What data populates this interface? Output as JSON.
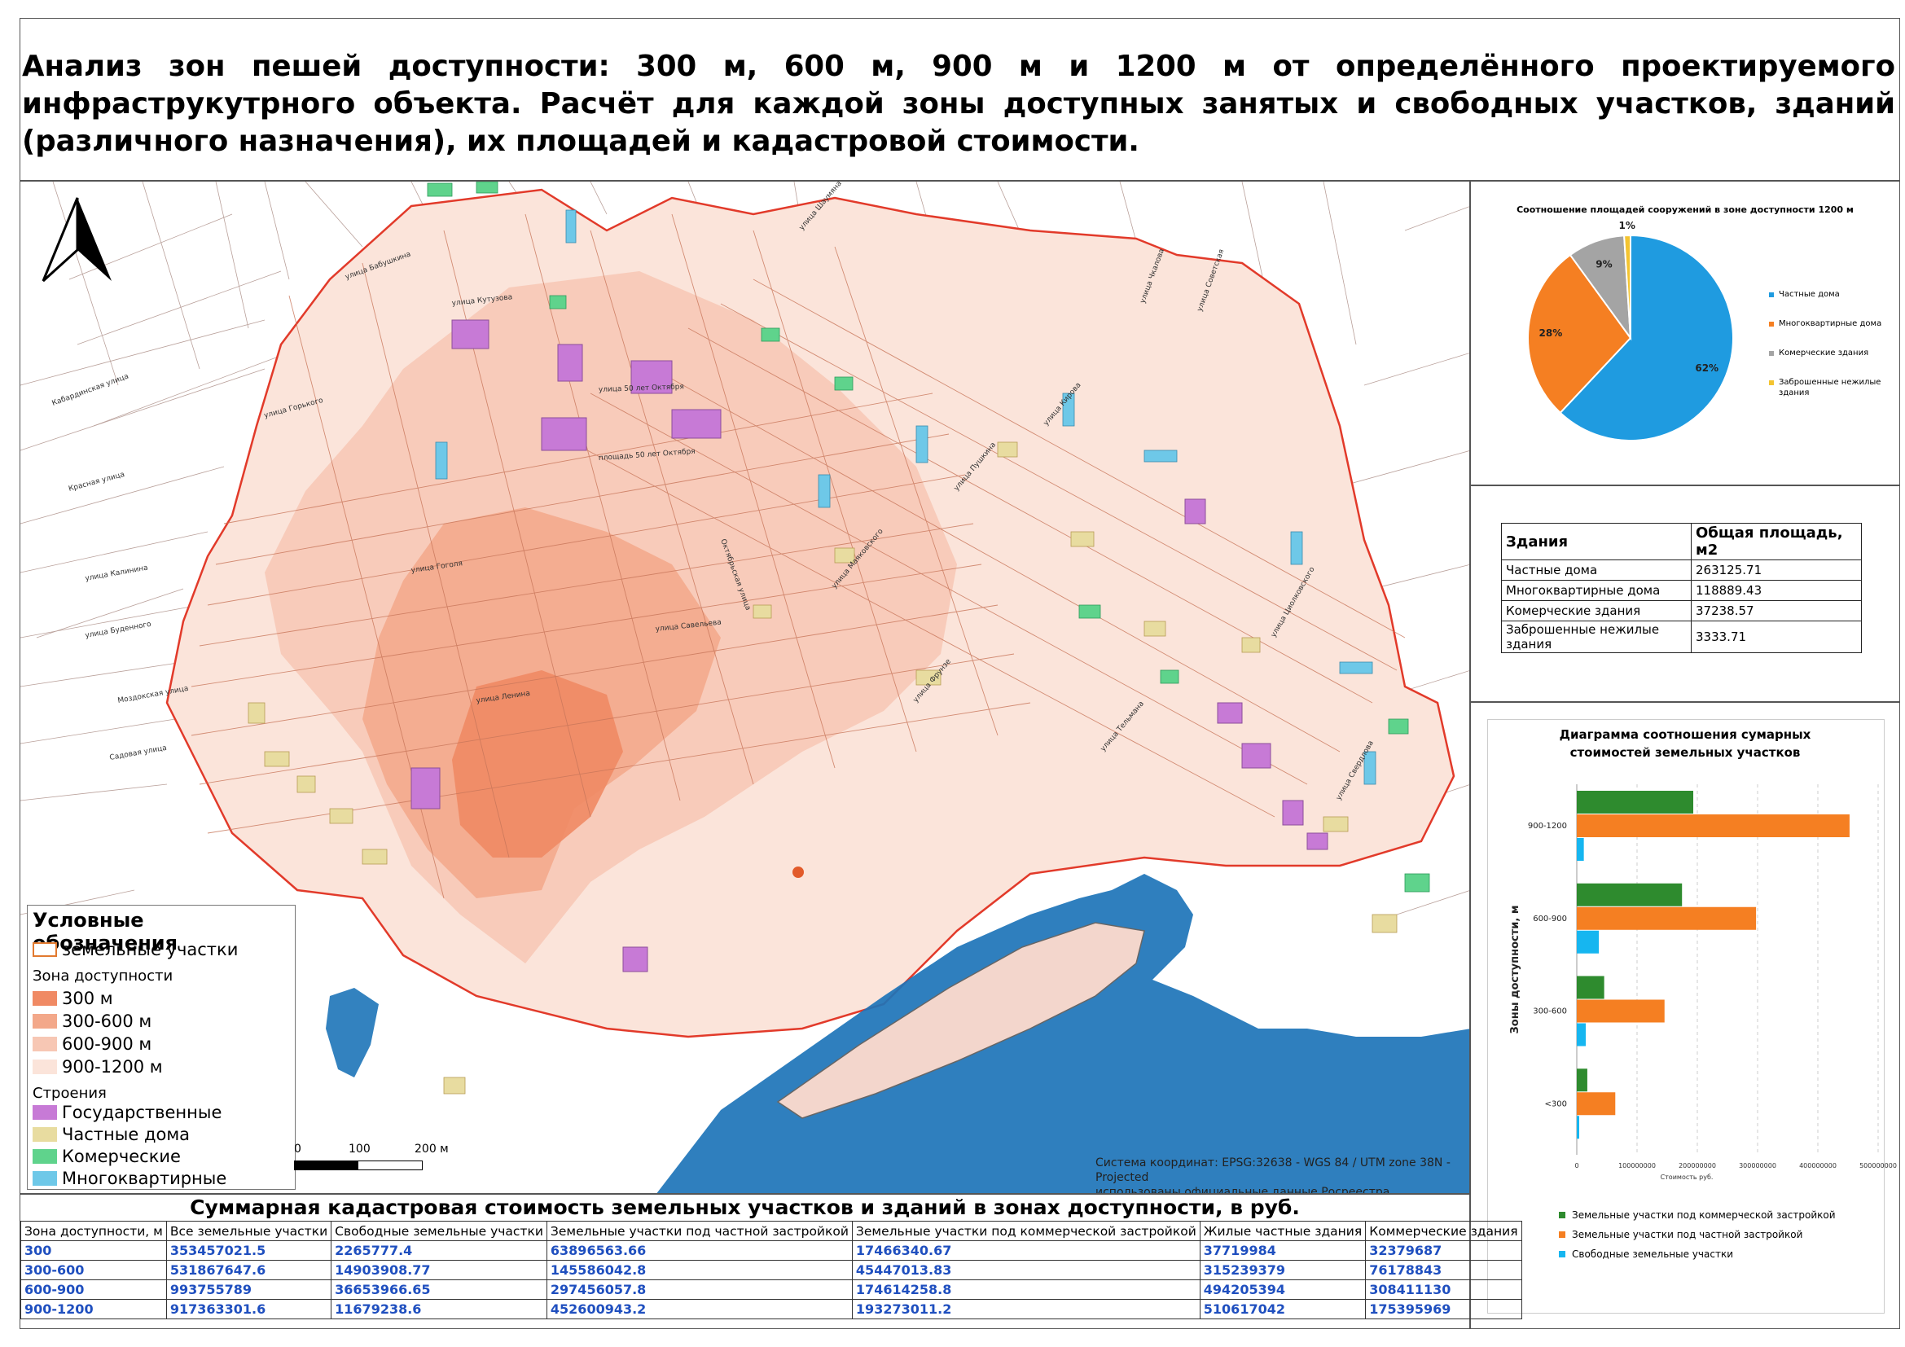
{
  "title": "Анализ зон пешей доступности: 300 м, 600 м, 900 м и 1200 м от определённого проектируемого инфраструкутрного объекта. Расчёт для каждой зоны доступных занятых и свободных участков, зданий (различного назначения), их площадей и кадастровой стоимости.",
  "legend": {
    "title": "Условные обозначения",
    "parcels": "земельные участки",
    "zones_title": "Зона доступности",
    "zones": [
      {
        "label": "300 м",
        "color": "#f08a64"
      },
      {
        "label": "300-600 м",
        "color": "#f3a88a"
      },
      {
        "label": "600-900 м",
        "color": "#f7c7b4"
      },
      {
        "label": "900-1200 м",
        "color": "#fbe4da"
      }
    ],
    "buildings_title": "Строения",
    "buildings": [
      {
        "label": "Государственные",
        "color": "#c77ad6"
      },
      {
        "label": "Частные дома",
        "color": "#e8dca0"
      },
      {
        "label": "Комерческие",
        "color": "#5fd38c"
      },
      {
        "label": "Многоквартирные",
        "color": "#6ec8e8"
      }
    ]
  },
  "scale": {
    "l0": "0",
    "l1": "100",
    "l2": "200 м"
  },
  "coords": {
    "line1": "Система координат: EPSG:32638 - WGS 84 / UTM zone 38N - Projected",
    "line2": "использованы официальные данные Росреестра"
  },
  "map_labels": {
    "streets": [
      "улица Кутузова",
      "улица Бабушкина",
      "улица Горького",
      "площадь 50 лет Октября",
      "улица 50 лет Октября",
      "улица Гоголя",
      "улица Калинина",
      "улица Буденного",
      "Моздокская улица",
      "Садовая улица",
      "улица Ленина",
      "Кабардинская улица",
      "Красная улица",
      "улица Савельева",
      "Октябрьская улица",
      "улица Маяковского",
      "улица Пушкина",
      "улица Кирова",
      "улица Чкалова",
      "улица Шаумяна",
      "улица Фрунзе",
      "улица Тельмана",
      "улица Советская",
      "улица Циолковского",
      "улица Свердлова"
    ]
  },
  "pie": {
    "title": "Соотношение площадей сооружений в зоне доступности 1200 м",
    "chart_data": {
      "type": "pie",
      "labels": [
        "Частные дома",
        "Многоквартирные дома",
        "Комерческие здания",
        "Заброшенные нежилые здания"
      ],
      "values": [
        62,
        28,
        9,
        1
      ],
      "display": [
        "62%",
        "28%",
        "9%",
        "1%"
      ],
      "colors": [
        "#1f9be0",
        "#f57f22",
        "#a4a4a4",
        "#f4c430"
      ]
    }
  },
  "buildings_table": {
    "headers": [
      "Здания",
      "Общая площадь, м2"
    ],
    "rows": [
      [
        "Частные дома",
        "263125.71"
      ],
      [
        "Многоквартирные дома",
        "118889.43"
      ],
      [
        "Комерческие здания",
        "37238.57"
      ],
      [
        "Заброшенные нежилые здания",
        "3333.71"
      ]
    ]
  },
  "bar": {
    "title_line1": "Диаграмма соотношения сумарных",
    "title_line2": "стоимостей земельных участков",
    "chart_data": {
      "type": "bar",
      "orientation": "horizontal",
      "categories": [
        "900-1200",
        "600-900",
        "300-600",
        "<300"
      ],
      "series": [
        {
          "name": "Земельные участки под коммерческой застройкой",
          "color": "#2e8b2e",
          "values": [
            193273011.2,
            174614258.8,
            45447013.83,
            17466340.67
          ]
        },
        {
          "name": "Земельные участки под частной застройкой",
          "color": "#f57f22",
          "values": [
            452600943.2,
            297456057.8,
            145586042.8,
            63896563.66
          ]
        },
        {
          "name": "Свободные земельные участки",
          "color": "#16b6f0",
          "values": [
            11679238.6,
            36653966.65,
            14903908.77,
            2265777.4
          ]
        }
      ],
      "xlim": [
        0,
        500000000
      ],
      "xticks": [
        "0",
        "100000000",
        "200000000",
        "300000000",
        "400000000",
        "500000000"
      ],
      "xlabel": "Стоимость руб.",
      "ylabel": "Зоны доступности, м"
    }
  },
  "cost_table": {
    "title": "Суммарная кадастровая стоимость земельных участков и зданий в зонах доступности, в руб.",
    "headers": [
      "Зона доступности, м",
      "Все земельные участки",
      "Свободные земельные участки",
      "Земельные участки под частной застройкой",
      "Земельные участки под коммерческой застройкой",
      "Жилые частные здания",
      "Коммерческие здания"
    ],
    "rows": [
      [
        "300",
        "353457021.5",
        "2265777.4",
        "63896563.66",
        "17466340.67",
        "37719984",
        "32379687"
      ],
      [
        "300-600",
        "531867647.6",
        "14903908.77",
        "145586042.8",
        "45447013.83",
        "315239379",
        "76178843"
      ],
      [
        "600-900",
        "993755789",
        "36653966.65",
        "297456057.8",
        "174614258.8",
        "494205394",
        "308411130"
      ],
      [
        "900-1200",
        "917363301.6",
        "11679238.6",
        "452600943.2",
        "193273011.2",
        "510617042",
        "175395969"
      ]
    ]
  }
}
